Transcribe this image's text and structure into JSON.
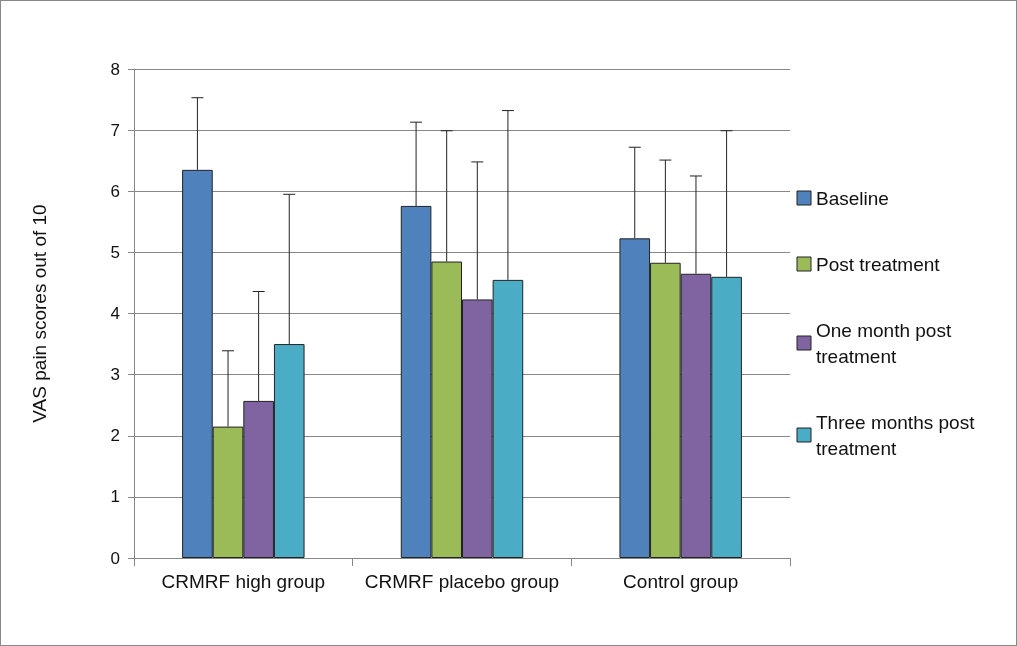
{
  "chart_data": {
    "type": "bar",
    "ylabel": "VAS pain scores out of 10",
    "categories": [
      "CRMRF high group",
      "CRMRF placebo group",
      "Control group"
    ],
    "series": [
      {
        "name": "Baseline",
        "color": "#4f81bd",
        "values": [
          6.35,
          5.76,
          5.23
        ],
        "errors": [
          [
            6.35,
            7.53
          ],
          [
            5.76,
            7.13
          ],
          [
            5.23,
            6.72
          ]
        ]
      },
      {
        "name": "Post treatment",
        "color": "#9bbb59",
        "values": [
          2.15,
          4.85,
          4.83
        ],
        "errors": [
          [
            2.15,
            3.39
          ],
          [
            4.85,
            6.99
          ],
          [
            4.83,
            6.51
          ]
        ]
      },
      {
        "name": "One month post treatment",
        "color": "#8064a2",
        "values": [
          2.57,
          4.23,
          4.65
        ],
        "errors": [
          [
            2.57,
            4.36
          ],
          [
            4.23,
            6.48
          ],
          [
            4.65,
            6.25
          ]
        ]
      },
      {
        "name": "Three months post treatment",
        "color": "#4bacc6",
        "values": [
          3.5,
          4.55,
          4.6
        ],
        "errors": [
          [
            3.5,
            5.95
          ],
          [
            4.55,
            7.32
          ],
          [
            4.6,
            6.99
          ]
        ]
      }
    ],
    "ylim": [
      0,
      8
    ],
    "yticks": [
      0,
      1,
      2,
      3,
      4,
      5,
      6,
      7,
      8
    ],
    "grid": "y",
    "legend": "right"
  }
}
